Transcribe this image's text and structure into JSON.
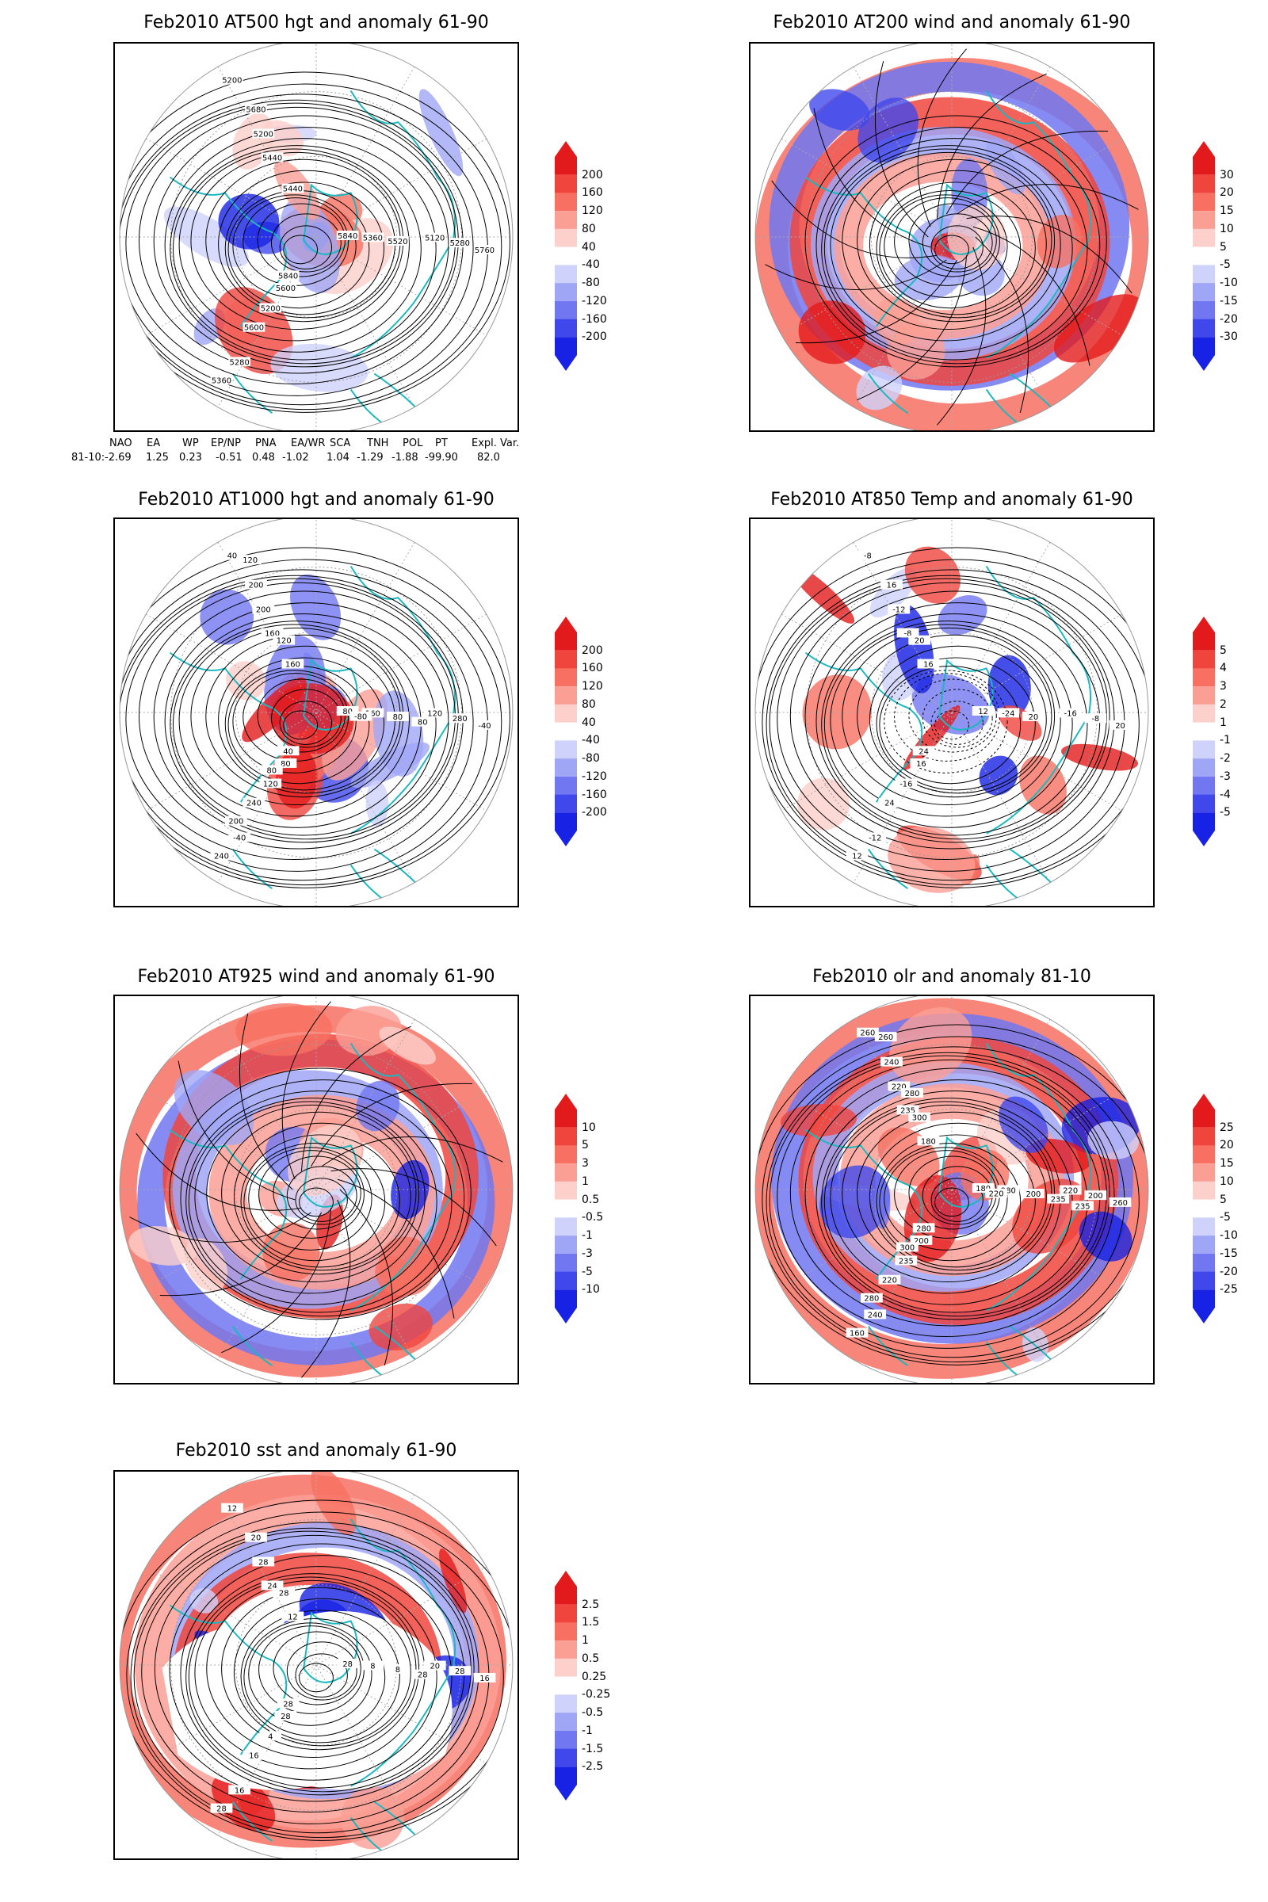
{
  "panels": [
    {
      "id": "p1",
      "title": "Feb2010 AT500 hgt and anomaly 61-90",
      "levels": [
        "200",
        "160",
        "120",
        "80",
        "40",
        "-40",
        "-80",
        "-120",
        "-160",
        "-200"
      ],
      "contour_labels": [
        "5840",
        "5600",
        "5440",
        "5120",
        "5280",
        "5200",
        "5360",
        "5200",
        "5200",
        "5280",
        "5360",
        "5440",
        "5520",
        "5600",
        "5680",
        "5760",
        "5840"
      ]
    },
    {
      "id": "p2",
      "title": "Feb2010 AT200 wind and anomaly 61-90",
      "levels": [
        "30",
        "20",
        "15",
        "10",
        "5",
        "-5",
        "-10",
        "-15",
        "-20",
        "-30"
      ],
      "contour_labels": []
    },
    {
      "id": "p3",
      "title": "Feb2010 AT1000 hgt and anomaly 61-90",
      "levels": [
        "200",
        "160",
        "120",
        "80",
        "40",
        "-40",
        "-80",
        "-120",
        "-160",
        "-200"
      ],
      "contour_labels": [
        "80",
        "80",
        "160",
        "120",
        "-40",
        "40",
        "160",
        "120",
        "200",
        "280",
        "240",
        "160",
        "80",
        "240",
        "200",
        "-40",
        "40",
        "120",
        "80",
        "200",
        "120",
        "-80",
        "80"
      ]
    },
    {
      "id": "p4",
      "title": "Feb2010 AT850 Temp and anomaly 61-90",
      "levels": [
        "5",
        "4",
        "3",
        "2",
        "1",
        "-1",
        "-2",
        "-3",
        "-4",
        "-5"
      ],
      "contour_labels": [
        "12",
        "16",
        "-8",
        "-16",
        "-12",
        "-8",
        "-24",
        "-16",
        "-12",
        "-8",
        "12",
        "16",
        "20",
        "24",
        "16",
        "20",
        "24",
        "20"
      ]
    },
    {
      "id": "p5",
      "title": "Feb2010 AT925 wind and anomaly 61-90",
      "levels": [
        "10",
        "5",
        "3",
        "1",
        "0.5",
        "-0.5",
        "-1",
        "-3",
        "-5",
        "-10"
      ],
      "contour_labels": []
    },
    {
      "id": "p6",
      "title": "Feb2010 olr and anomaly 81-10",
      "levels": [
        "25",
        "20",
        "15",
        "10",
        "5",
        "-5",
        "-10",
        "-15",
        "-20",
        "-25"
      ],
      "contour_labels": [
        "180",
        "200",
        "235",
        "220",
        "240",
        "260",
        "280",
        "235",
        "220",
        "200",
        "160",
        "180",
        "200",
        "220",
        "240",
        "260",
        "280",
        "300",
        "235",
        "280",
        "260",
        "220",
        "300",
        "280",
        "235"
      ]
    },
    {
      "id": "p7",
      "title": "Feb2010 sst and anomaly 61-90",
      "levels": [
        "2.5",
        "1.5",
        "1",
        "0.5",
        "0.25",
        "-0.25",
        "-0.5",
        "-1",
        "-1.5",
        "-2.5"
      ],
      "contour_labels": [
        "28",
        "28",
        "24",
        "20",
        "16",
        "12",
        "8",
        "4",
        "28",
        "28",
        "28",
        "12",
        "8",
        "16",
        "20",
        "16",
        "28",
        "28",
        "28"
      ]
    }
  ],
  "index_table": {
    "headers": [
      "NAO",
      "EA",
      "WP",
      "EP/NP",
      "PNA",
      "EA/WR",
      "SCA",
      "TNH",
      "POL",
      "PT",
      "Expl. Var."
    ],
    "row_label": "81-10:",
    "values": [
      "-2.69",
      "1.25",
      "0.23",
      "-0.51",
      "0.48",
      "-1.02",
      "1.04",
      "-1.29",
      "-1.88",
      "-99.90",
      "82.0"
    ]
  },
  "colors": {
    "pos": [
      "#e31a1c",
      "#f0453d",
      "#f77062",
      "#fb9f95",
      "#fdd0cb"
    ],
    "neg": [
      "#cfd2fb",
      "#a0a6f6",
      "#7077f1",
      "#4048ec",
      "#1822e4"
    ],
    "coast": "#1ab8c0"
  }
}
